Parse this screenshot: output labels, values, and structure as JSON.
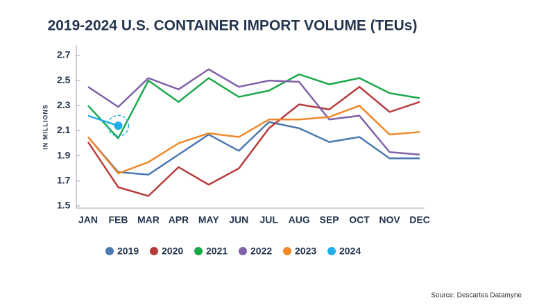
{
  "chart_data": {
    "type": "line",
    "title": "2019-2024 U.S. CONTAINER IMPORT VOLUME (TEUs)",
    "y_label": "IN MILLIONS",
    "source": "Source: Descartes Datamyne",
    "categories": [
      "JAN",
      "FEB",
      "MAR",
      "APR",
      "MAY",
      "JUN",
      "JUL",
      "AUG",
      "SEP",
      "OCT",
      "NOV",
      "DEC"
    ],
    "series": [
      {
        "name": "2019",
        "color": "#4a78b0",
        "values": [
          2.05,
          1.77,
          1.75,
          1.91,
          2.07,
          1.94,
          2.17,
          2.12,
          2.01,
          2.05,
          1.88,
          1.88
        ]
      },
      {
        "name": "2020",
        "color": "#b83c3c",
        "values": [
          2.01,
          1.65,
          1.58,
          1.81,
          1.67,
          1.8,
          2.12,
          2.31,
          2.27,
          2.45,
          2.25,
          2.33
        ]
      },
      {
        "name": "2021",
        "color": "#1aa84a",
        "values": [
          2.3,
          2.04,
          2.5,
          2.33,
          2.52,
          2.37,
          2.42,
          2.55,
          2.47,
          2.52,
          2.4,
          2.36
        ]
      },
      {
        "name": "2022",
        "color": "#8060a8",
        "values": [
          2.45,
          2.29,
          2.52,
          2.43,
          2.59,
          2.45,
          2.5,
          2.49,
          2.19,
          2.22,
          1.93,
          1.91
        ]
      },
      {
        "name": "2023",
        "color": "#f0882a",
        "values": [
          2.05,
          1.76,
          1.85,
          2.0,
          2.08,
          2.05,
          2.19,
          2.19,
          2.21,
          2.3,
          2.07,
          2.09
        ]
      },
      {
        "name": "2024",
        "color": "#20aee8",
        "values": [
          2.22,
          2.14,
          null,
          null,
          null,
          null,
          null,
          null,
          null,
          null,
          null,
          null
        ]
      }
    ],
    "ylim": [
      1.5,
      2.7
    ],
    "yticks": [
      {
        "value": 1.5,
        "label": "1.5"
      },
      {
        "value": 1.7,
        "label": "1.7"
      },
      {
        "value": 1.9,
        "label": "1.9"
      },
      {
        "value": 2.1,
        "label": "2.1"
      },
      {
        "value": 2.3,
        "label": "2.3"
      },
      {
        "value": 2.5,
        "label": "2.5"
      },
      {
        "value": 2.7,
        "label": "2.7"
      }
    ],
    "grid": false,
    "legend": "bottom"
  }
}
